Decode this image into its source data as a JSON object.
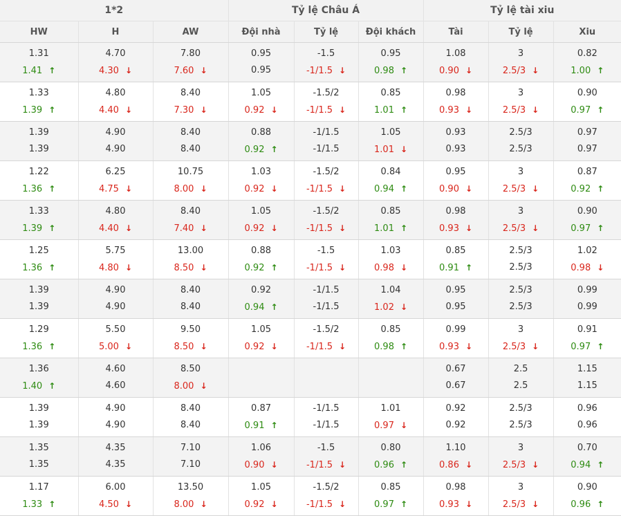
{
  "header": {
    "groups": [
      "1*2",
      "Tỷ lệ Châu Á",
      "Tỷ lệ tài xiu"
    ],
    "columns": [
      "HW",
      "H",
      "AW",
      "Đội nhà",
      "Tỷ lệ",
      "Đội khách",
      "Tài",
      "Tỷ lệ",
      "Xiu"
    ]
  },
  "icons": {
    "up": "arrow-up-icon",
    "down": "arrow-down-icon"
  },
  "colors": {
    "up": "#2e8b12",
    "down": "#d9261c",
    "neutral": "#333333"
  },
  "rows": [
    {
      "cells": [
        {
          "a": "1.31",
          "b": "1.41",
          "t": "up"
        },
        {
          "a": "4.70",
          "b": "4.30",
          "t": "down"
        },
        {
          "a": "7.80",
          "b": "7.60",
          "t": "down"
        },
        {
          "a": "0.95",
          "b": "0.95",
          "t": ""
        },
        {
          "a": "-1.5",
          "b": "-1/1.5",
          "t": "down"
        },
        {
          "a": "0.95",
          "b": "0.98",
          "t": "up"
        },
        {
          "a": "1.08",
          "b": "0.90",
          "t": "down"
        },
        {
          "a": "3",
          "b": "2.5/3",
          "t": "down"
        },
        {
          "a": "0.82",
          "b": "1.00",
          "t": "up"
        }
      ]
    },
    {
      "cells": [
        {
          "a": "1.33",
          "b": "1.39",
          "t": "up"
        },
        {
          "a": "4.80",
          "b": "4.40",
          "t": "down"
        },
        {
          "a": "8.40",
          "b": "7.30",
          "t": "down"
        },
        {
          "a": "1.05",
          "b": "0.92",
          "t": "down"
        },
        {
          "a": "-1.5/2",
          "b": "-1/1.5",
          "t": "down"
        },
        {
          "a": "0.85",
          "b": "1.01",
          "t": "up"
        },
        {
          "a": "0.98",
          "b": "0.93",
          "t": "down"
        },
        {
          "a": "3",
          "b": "2.5/3",
          "t": "down"
        },
        {
          "a": "0.90",
          "b": "0.97",
          "t": "up"
        }
      ]
    },
    {
      "cells": [
        {
          "a": "1.39",
          "b": "1.39",
          "t": ""
        },
        {
          "a": "4.90",
          "b": "4.90",
          "t": ""
        },
        {
          "a": "8.40",
          "b": "8.40",
          "t": ""
        },
        {
          "a": "0.88",
          "b": "0.92",
          "t": "up"
        },
        {
          "a": "-1/1.5",
          "b": "-1/1.5",
          "t": ""
        },
        {
          "a": "1.05",
          "b": "1.01",
          "t": "down"
        },
        {
          "a": "0.93",
          "b": "0.93",
          "t": ""
        },
        {
          "a": "2.5/3",
          "b": "2.5/3",
          "t": ""
        },
        {
          "a": "0.97",
          "b": "0.97",
          "t": ""
        }
      ]
    },
    {
      "cells": [
        {
          "a": "1.22",
          "b": "1.36",
          "t": "up"
        },
        {
          "a": "6.25",
          "b": "4.75",
          "t": "down"
        },
        {
          "a": "10.75",
          "b": "8.00",
          "t": "down"
        },
        {
          "a": "1.03",
          "b": "0.92",
          "t": "down"
        },
        {
          "a": "-1.5/2",
          "b": "-1/1.5",
          "t": "down"
        },
        {
          "a": "0.84",
          "b": "0.94",
          "t": "up"
        },
        {
          "a": "0.95",
          "b": "0.90",
          "t": "down"
        },
        {
          "a": "3",
          "b": "2.5/3",
          "t": "down"
        },
        {
          "a": "0.87",
          "b": "0.92",
          "t": "up"
        }
      ]
    },
    {
      "cells": [
        {
          "a": "1.33",
          "b": "1.39",
          "t": "up"
        },
        {
          "a": "4.80",
          "b": "4.40",
          "t": "down"
        },
        {
          "a": "8.40",
          "b": "7.40",
          "t": "down"
        },
        {
          "a": "1.05",
          "b": "0.92",
          "t": "down"
        },
        {
          "a": "-1.5/2",
          "b": "-1/1.5",
          "t": "down"
        },
        {
          "a": "0.85",
          "b": "1.01",
          "t": "up"
        },
        {
          "a": "0.98",
          "b": "0.93",
          "t": "down"
        },
        {
          "a": "3",
          "b": "2.5/3",
          "t": "down"
        },
        {
          "a": "0.90",
          "b": "0.97",
          "t": "up"
        }
      ]
    },
    {
      "cells": [
        {
          "a": "1.25",
          "b": "1.36",
          "t": "up"
        },
        {
          "a": "5.75",
          "b": "4.80",
          "t": "down"
        },
        {
          "a": "13.00",
          "b": "8.50",
          "t": "down"
        },
        {
          "a": "0.88",
          "b": "0.92",
          "t": "up"
        },
        {
          "a": "-1.5",
          "b": "-1/1.5",
          "t": "down"
        },
        {
          "a": "1.03",
          "b": "0.98",
          "t": "down"
        },
        {
          "a": "0.85",
          "b": "0.91",
          "t": "up"
        },
        {
          "a": "2.5/3",
          "b": "2.5/3",
          "t": ""
        },
        {
          "a": "1.02",
          "b": "0.98",
          "t": "down"
        }
      ]
    },
    {
      "cells": [
        {
          "a": "1.39",
          "b": "1.39",
          "t": ""
        },
        {
          "a": "4.90",
          "b": "4.90",
          "t": ""
        },
        {
          "a": "8.40",
          "b": "8.40",
          "t": ""
        },
        {
          "a": "0.92",
          "b": "0.94",
          "t": "up"
        },
        {
          "a": "-1/1.5",
          "b": "-1/1.5",
          "t": ""
        },
        {
          "a": "1.04",
          "b": "1.02",
          "t": "down"
        },
        {
          "a": "0.95",
          "b": "0.95",
          "t": ""
        },
        {
          "a": "2.5/3",
          "b": "2.5/3",
          "t": ""
        },
        {
          "a": "0.99",
          "b": "0.99",
          "t": ""
        }
      ]
    },
    {
      "cells": [
        {
          "a": "1.29",
          "b": "1.36",
          "t": "up"
        },
        {
          "a": "5.50",
          "b": "5.00",
          "t": "down"
        },
        {
          "a": "9.50",
          "b": "8.50",
          "t": "down"
        },
        {
          "a": "1.05",
          "b": "0.92",
          "t": "down"
        },
        {
          "a": "-1.5/2",
          "b": "-1/1.5",
          "t": "down"
        },
        {
          "a": "0.85",
          "b": "0.98",
          "t": "up"
        },
        {
          "a": "0.99",
          "b": "0.93",
          "t": "down"
        },
        {
          "a": "3",
          "b": "2.5/3",
          "t": "down"
        },
        {
          "a": "0.91",
          "b": "0.97",
          "t": "up"
        }
      ]
    },
    {
      "cells": [
        {
          "a": "1.36",
          "b": "1.40",
          "t": "up"
        },
        {
          "a": "4.60",
          "b": "4.60",
          "t": ""
        },
        {
          "a": "8.50",
          "b": "8.00",
          "t": "down"
        },
        {
          "a": "",
          "b": "",
          "t": ""
        },
        {
          "a": "",
          "b": "",
          "t": ""
        },
        {
          "a": "",
          "b": "",
          "t": ""
        },
        {
          "a": "0.67",
          "b": "0.67",
          "t": ""
        },
        {
          "a": "2.5",
          "b": "2.5",
          "t": ""
        },
        {
          "a": "1.15",
          "b": "1.15",
          "t": ""
        }
      ]
    },
    {
      "cells": [
        {
          "a": "1.39",
          "b": "1.39",
          "t": ""
        },
        {
          "a": "4.90",
          "b": "4.90",
          "t": ""
        },
        {
          "a": "8.40",
          "b": "8.40",
          "t": ""
        },
        {
          "a": "0.87",
          "b": "0.91",
          "t": "up"
        },
        {
          "a": "-1/1.5",
          "b": "-1/1.5",
          "t": ""
        },
        {
          "a": "1.01",
          "b": "0.97",
          "t": "down"
        },
        {
          "a": "0.92",
          "b": "0.92",
          "t": ""
        },
        {
          "a": "2.5/3",
          "b": "2.5/3",
          "t": ""
        },
        {
          "a": "0.96",
          "b": "0.96",
          "t": ""
        }
      ]
    },
    {
      "cells": [
        {
          "a": "1.35",
          "b": "1.35",
          "t": ""
        },
        {
          "a": "4.35",
          "b": "4.35",
          "t": ""
        },
        {
          "a": "7.10",
          "b": "7.10",
          "t": ""
        },
        {
          "a": "1.06",
          "b": "0.90",
          "t": "down"
        },
        {
          "a": "-1.5",
          "b": "-1/1.5",
          "t": "down"
        },
        {
          "a": "0.80",
          "b": "0.96",
          "t": "up"
        },
        {
          "a": "1.10",
          "b": "0.86",
          "t": "down"
        },
        {
          "a": "3",
          "b": "2.5/3",
          "t": "down"
        },
        {
          "a": "0.70",
          "b": "0.94",
          "t": "up"
        }
      ]
    },
    {
      "cells": [
        {
          "a": "1.17",
          "b": "1.33",
          "t": "up"
        },
        {
          "a": "6.00",
          "b": "4.50",
          "t": "down"
        },
        {
          "a": "13.50",
          "b": "8.00",
          "t": "down"
        },
        {
          "a": "1.05",
          "b": "0.92",
          "t": "down"
        },
        {
          "a": "-1.5/2",
          "b": "-1/1.5",
          "t": "down"
        },
        {
          "a": "0.85",
          "b": "0.97",
          "t": "up"
        },
        {
          "a": "0.98",
          "b": "0.93",
          "t": "down"
        },
        {
          "a": "3",
          "b": "2.5/3",
          "t": "down"
        },
        {
          "a": "0.90",
          "b": "0.96",
          "t": "up"
        }
      ]
    }
  ]
}
